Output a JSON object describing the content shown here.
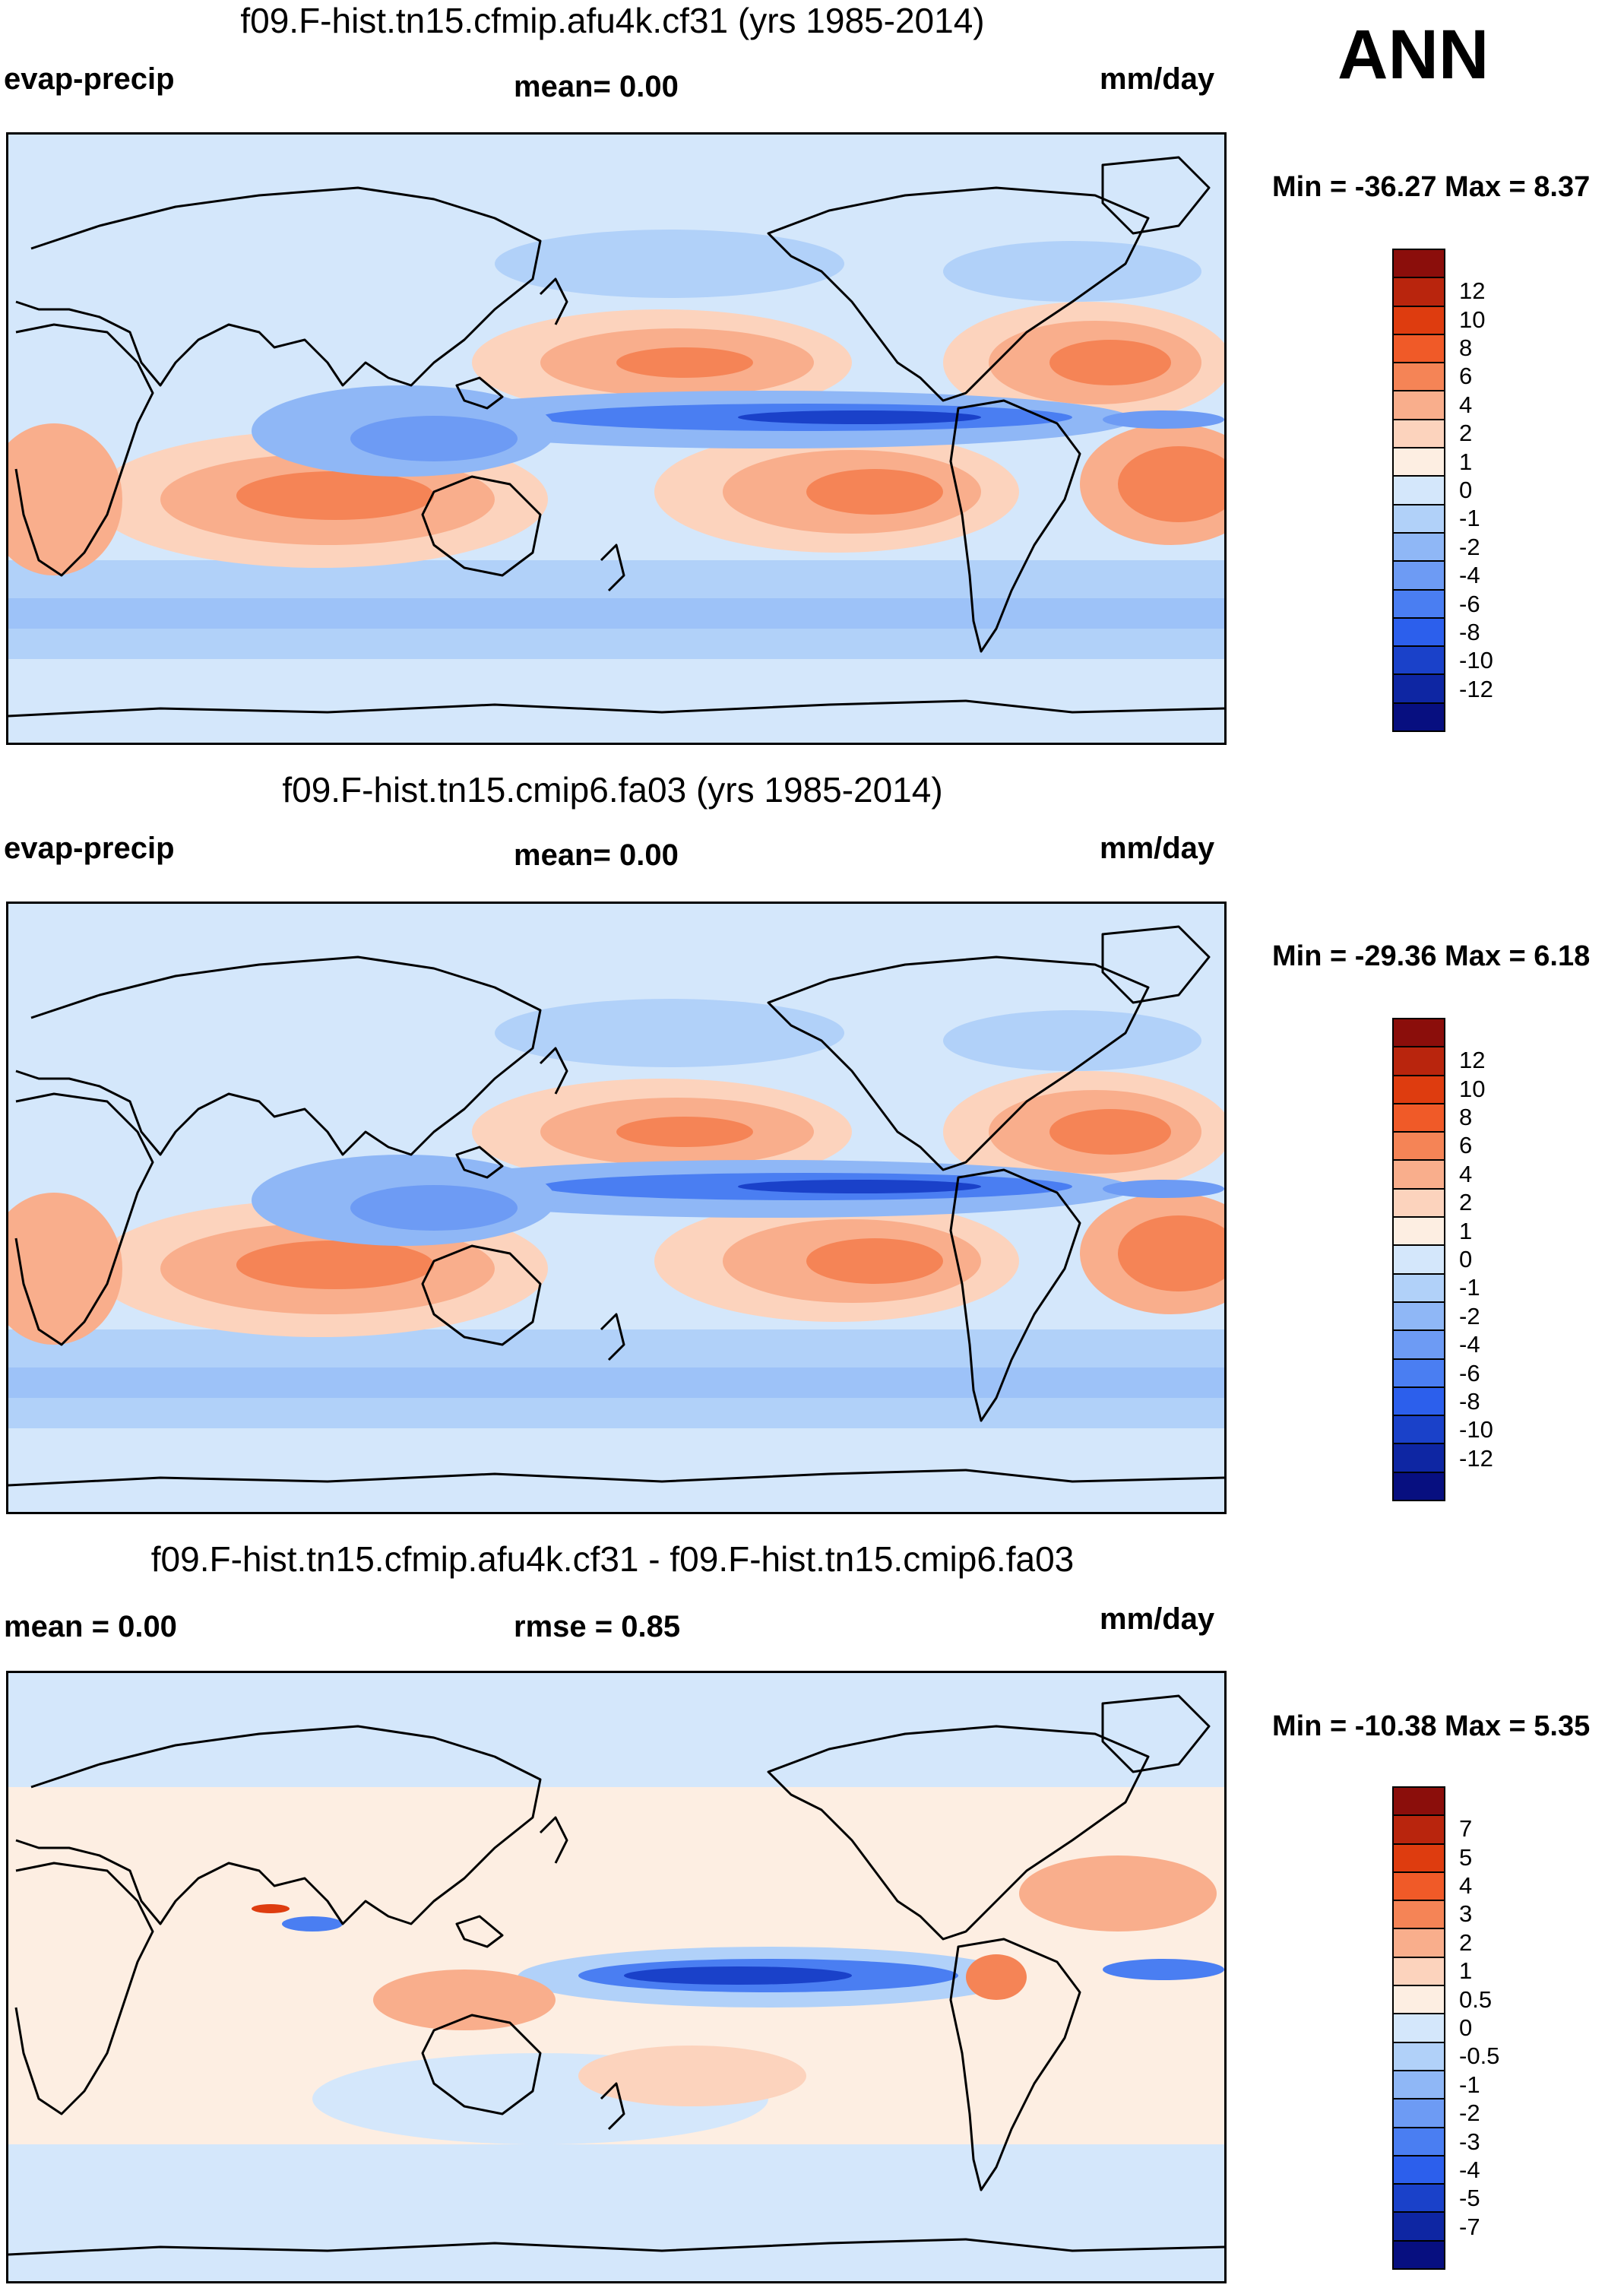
{
  "season": "ANN",
  "panels": [
    {
      "title": "f09.F-hist.tn15.cfmip.afu4k.cf31 (yrs 1985-2014)",
      "left_label": "evap-precip",
      "center_label": "mean=   0.00",
      "units": "mm/day",
      "minmax": "Min = -36.27 Max =    8.37",
      "colorbar": {
        "colors": [
          "#8b0e0b",
          "#b9250d",
          "#de3c0f",
          "#f05a28",
          "#f58456",
          "#f9ae8c",
          "#fcd3bd",
          "#fdeee2",
          "#d4e7fb",
          "#b1d1f9",
          "#8fb7f6",
          "#6d9bf4",
          "#4a7ef2",
          "#2c5fec",
          "#1a41c9",
          "#0e26a3",
          "#070f80"
        ],
        "ticks": [
          "12",
          "10",
          "8",
          "6",
          "4",
          "2",
          "1",
          "0",
          "-1",
          "-2",
          "-4",
          "-6",
          "-8",
          "-10",
          "-12"
        ]
      }
    },
    {
      "title": "f09.F-hist.tn15.cmip6.fa03 (yrs 1985-2014)",
      "left_label": "evap-precip",
      "center_label": "mean=   0.00",
      "units": "mm/day",
      "minmax": "Min = -29.36 Max =    6.18",
      "colorbar": {
        "colors": [
          "#8b0e0b",
          "#b9250d",
          "#de3c0f",
          "#f05a28",
          "#f58456",
          "#f9ae8c",
          "#fcd3bd",
          "#fdeee2",
          "#d4e7fb",
          "#b1d1f9",
          "#8fb7f6",
          "#6d9bf4",
          "#4a7ef2",
          "#2c5fec",
          "#1a41c9",
          "#0e26a3",
          "#070f80"
        ],
        "ticks": [
          "12",
          "10",
          "8",
          "6",
          "4",
          "2",
          "1",
          "0",
          "-1",
          "-2",
          "-4",
          "-6",
          "-8",
          "-10",
          "-12"
        ]
      }
    },
    {
      "title": "f09.F-hist.tn15.cfmip.afu4k.cf31 - f09.F-hist.tn15.cmip6.fa03",
      "left_label": "mean =   0.00",
      "center_label": "rmse =   0.85",
      "units": "mm/day",
      "minmax": "Min = -10.38 Max =    5.35",
      "colorbar": {
        "colors": [
          "#8b0e0b",
          "#b9250d",
          "#de3c0f",
          "#f05a28",
          "#f58456",
          "#f9ae8c",
          "#fcd3bd",
          "#fdeee2",
          "#d4e7fb",
          "#b1d1f9",
          "#8fb7f6",
          "#6d9bf4",
          "#4a7ef2",
          "#2c5fec",
          "#1a41c9",
          "#0e26a3",
          "#070f80"
        ],
        "ticks": [
          "7",
          "5",
          "4",
          "3",
          "2",
          "1",
          "0.5",
          "0",
          "-0.5",
          "-1",
          "-2",
          "-3",
          "-4",
          "-5",
          "-7"
        ]
      }
    }
  ]
}
